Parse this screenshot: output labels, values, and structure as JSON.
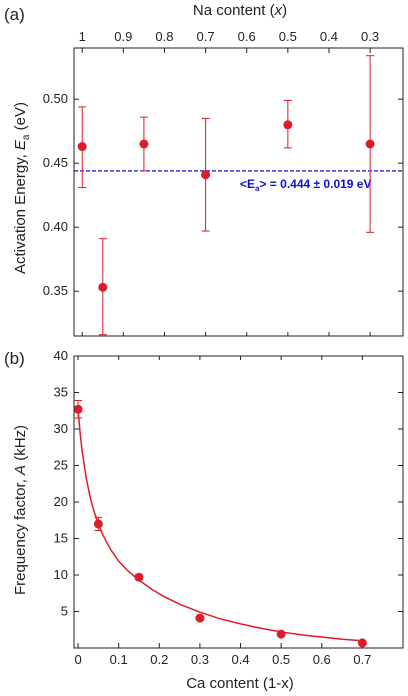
{
  "chart_data": [
    {
      "panel_label": "(a)",
      "type": "scatter",
      "top_axis": {
        "label_main": "Na content (",
        "label_var": "x",
        "label_end": ")",
        "range": [
          1.02,
          0.22
        ],
        "ticks": [
          1,
          0.9,
          0.8,
          0.7,
          0.6,
          0.5,
          0.4,
          0.3
        ],
        "tick_labels": [
          "1",
          "0.9",
          "0.8",
          "0.7",
          "0.6",
          "0.5",
          "0.4",
          "0.3"
        ]
      },
      "y_axis": {
        "label_main": "Activation Energy, ",
        "label_var": "E",
        "label_sub": "a",
        "label_unit": " (eV)",
        "range": [
          0.315,
          0.54
        ],
        "ticks": [
          0.35,
          0.4,
          0.45,
          0.5
        ],
        "tick_labels": [
          "0.35",
          "0.40",
          "0.45",
          "0.50"
        ]
      },
      "points": [
        {
          "x": 1.0,
          "y": 0.463,
          "err_low": 0.032,
          "err_high": 0.031
        },
        {
          "x": 0.95,
          "y": 0.353,
          "err_low": 0.037,
          "err_high": 0.038
        },
        {
          "x": 0.85,
          "y": 0.465,
          "err_low": 0.021,
          "err_high": 0.021
        },
        {
          "x": 0.7,
          "y": 0.441,
          "err_low": 0.044,
          "err_high": 0.044
        },
        {
          "x": 0.5,
          "y": 0.48,
          "err_low": 0.018,
          "err_high": 0.019
        },
        {
          "x": 0.3,
          "y": 0.465,
          "err_low": 0.069,
          "err_high": 0.069
        }
      ],
      "mean_line": {
        "y": 0.444,
        "label_left": "<E",
        "label_sub": "a",
        "label_right": "> = 0.444 ± 0.019 eV"
      },
      "colors": {
        "points": "#dd1c2a",
        "mean_line": "#1010c8"
      }
    },
    {
      "panel_label": "(b)",
      "type": "scatter",
      "x_axis": {
        "label": "Ca content (1-x)",
        "range": [
          -0.01,
          0.8
        ],
        "ticks": [
          0,
          0.1,
          0.2,
          0.3,
          0.4,
          0.5,
          0.6,
          0.7
        ],
        "tick_labels": [
          "0",
          "0.1",
          "0.2",
          "0.3",
          "0.4",
          "0.5",
          "0.6",
          "0.7"
        ]
      },
      "y_axis": {
        "label_main": "Frequency factor, ",
        "label_var": "A",
        "label_unit": " (kHz)",
        "range": [
          0,
          40
        ],
        "ticks": [
          5,
          10,
          15,
          20,
          25,
          30,
          35,
          40
        ],
        "tick_labels": [
          "5",
          "10",
          "15",
          "20",
          "25",
          "30",
          "35",
          "40"
        ]
      },
      "points": [
        {
          "x": 0.0,
          "y": 32.7,
          "err_low": 1.2,
          "err_high": 1.2
        },
        {
          "x": 0.05,
          "y": 17.0,
          "err_low": 0.9,
          "err_high": 0.9
        },
        {
          "x": 0.15,
          "y": 9.7,
          "err_low": 0.3,
          "err_high": 0.3
        },
        {
          "x": 0.3,
          "y": 4.1,
          "err_low": 0.2,
          "err_high": 0.2
        },
        {
          "x": 0.5,
          "y": 1.9,
          "err_low": 0.15,
          "err_high": 0.15
        },
        {
          "x": 0.7,
          "y": 0.7,
          "err_low": 0.1,
          "err_high": 0.1
        }
      ],
      "fit_curve": {
        "x": [
          0.0,
          0.005,
          0.01,
          0.02,
          0.03,
          0.04,
          0.05,
          0.06,
          0.08,
          0.1,
          0.12,
          0.15,
          0.18,
          0.21,
          0.25,
          0.3,
          0.35,
          0.4,
          0.45,
          0.5,
          0.55,
          0.6,
          0.65,
          0.7
        ],
        "y": [
          32.7,
          29.5,
          27.0,
          23.3,
          20.6,
          18.6,
          17.0,
          15.6,
          13.5,
          11.9,
          10.7,
          9.3,
          8.1,
          7.1,
          6.0,
          4.9,
          4.0,
          3.3,
          2.7,
          2.2,
          1.8,
          1.5,
          1.2,
          1.0
        ]
      },
      "colors": {
        "points": "#dd1c2a",
        "fit_curve": "#dd1c2a"
      }
    }
  ]
}
